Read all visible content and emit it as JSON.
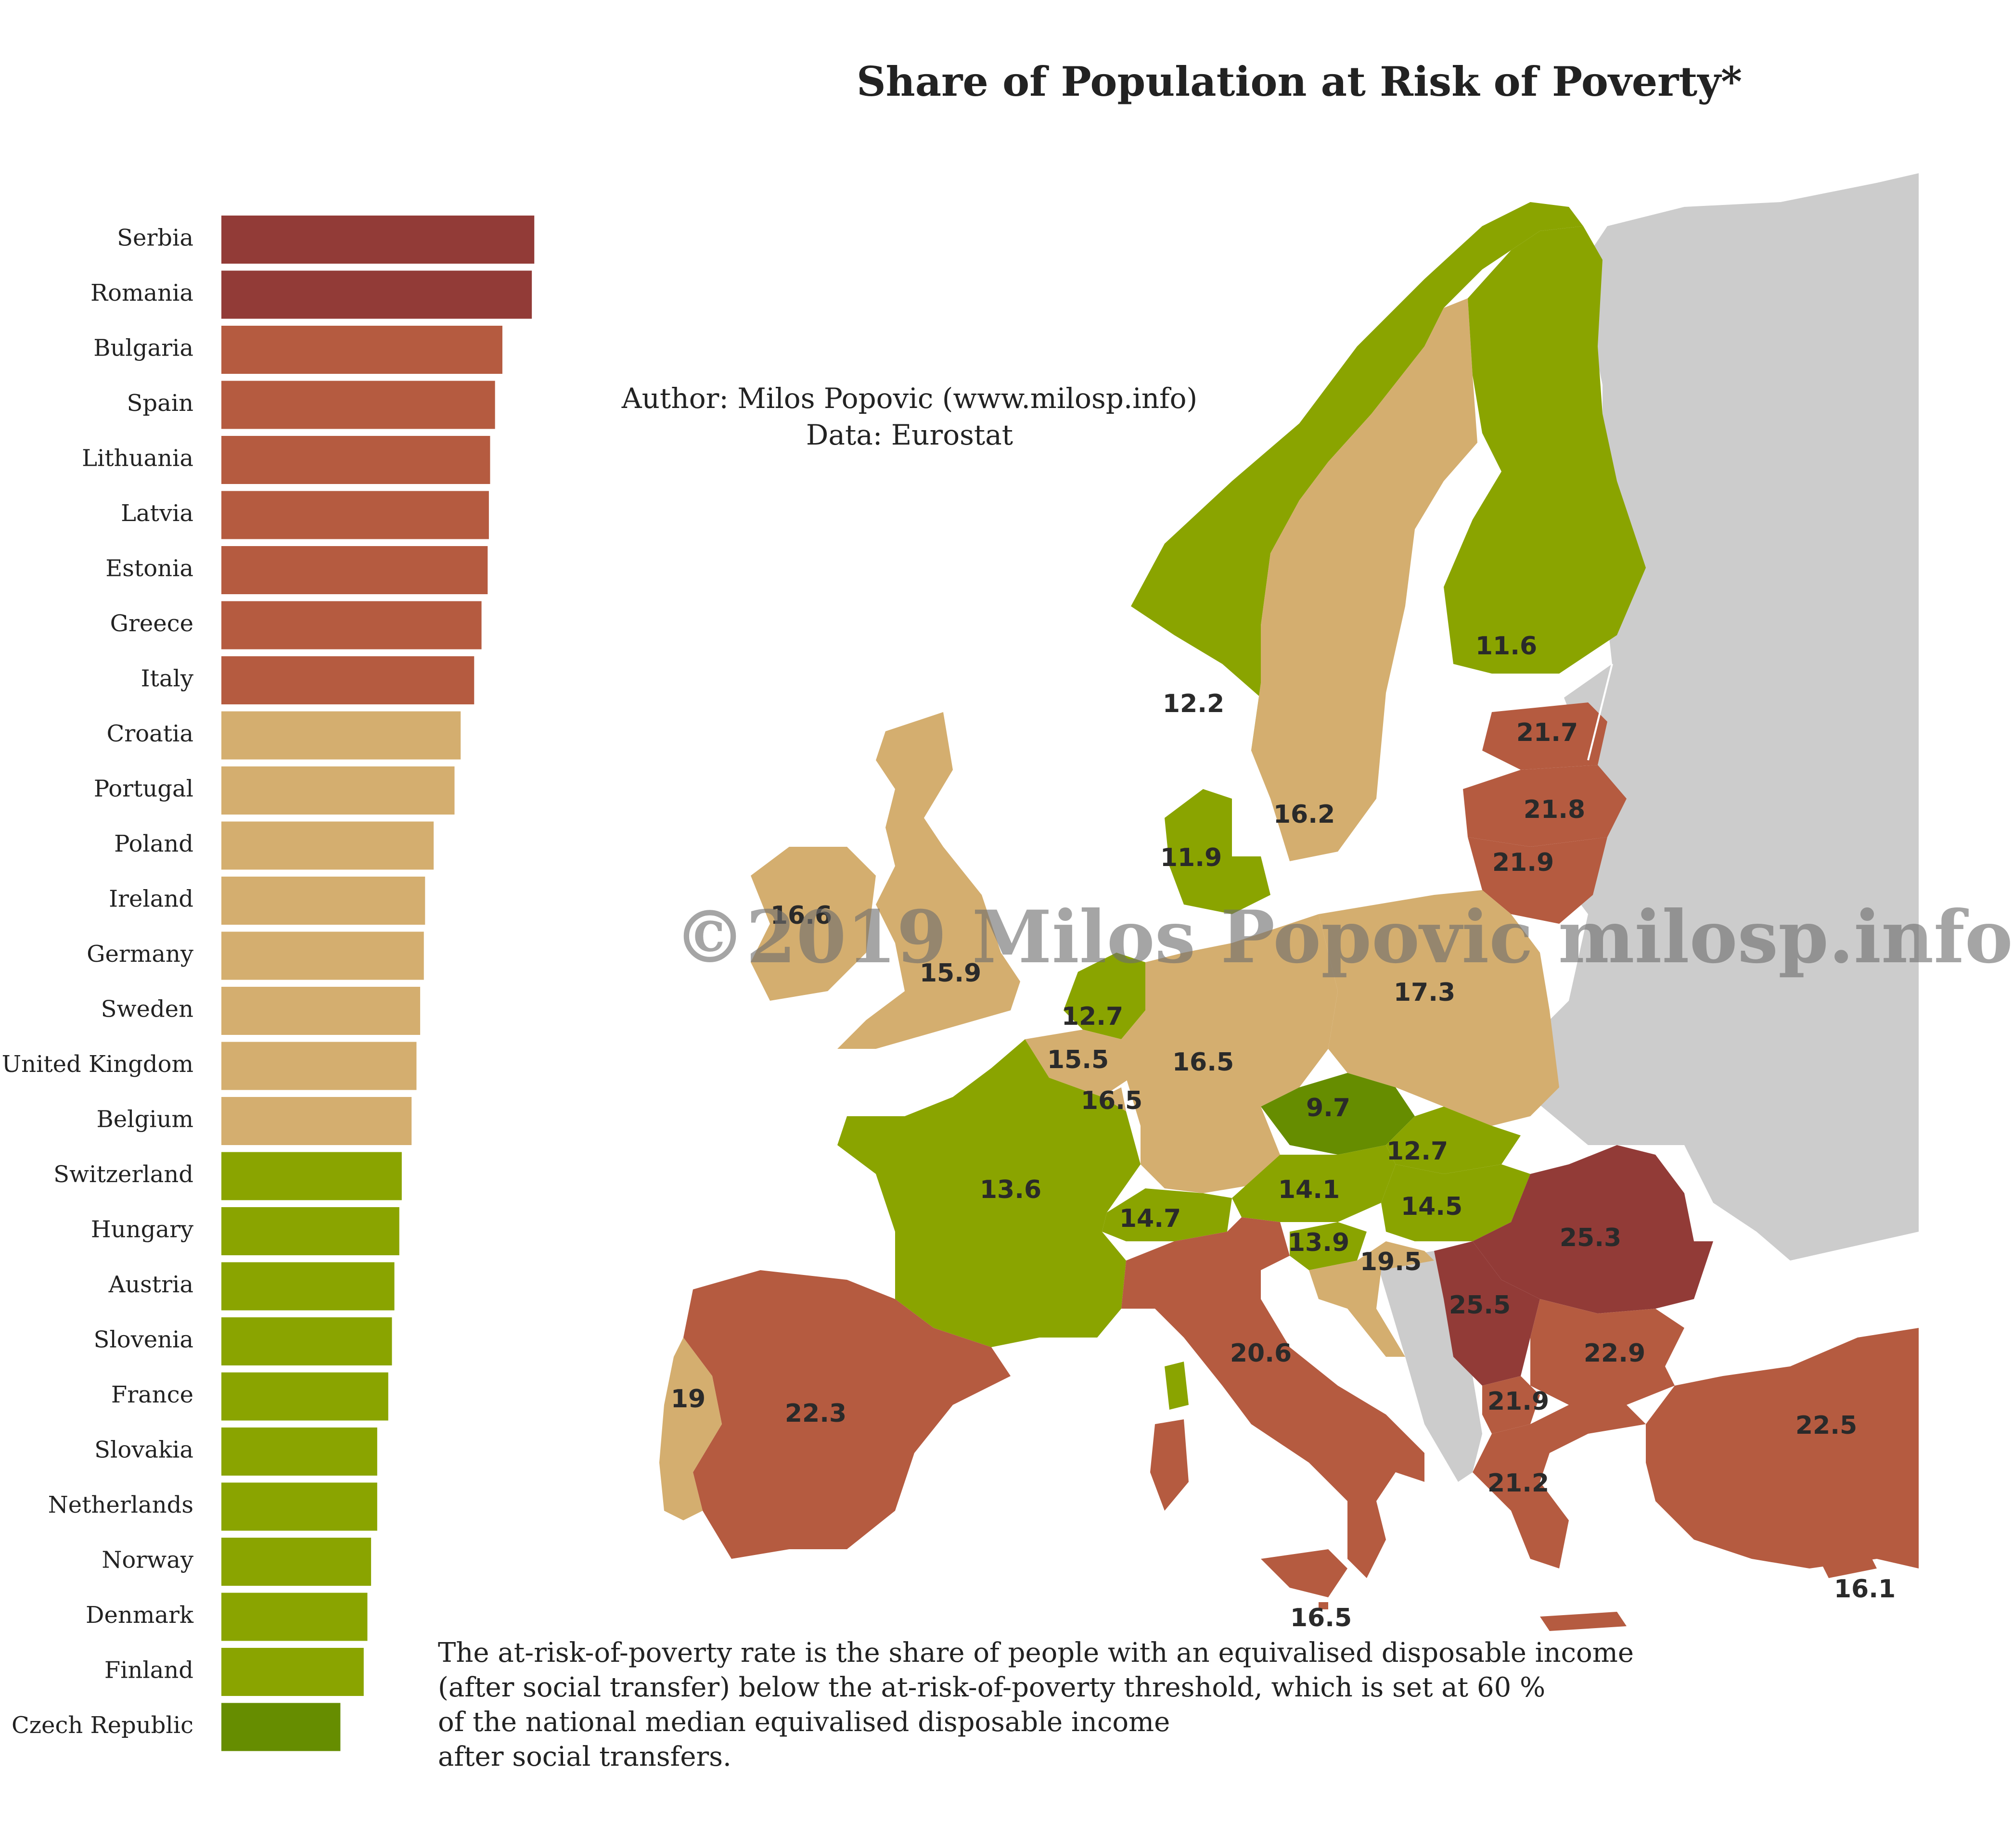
{
  "title": "Share of Population at Risk of Poverty*",
  "author": "Author: Milos Popovic (www.milosp.info)",
  "source": "Data: Eurostat",
  "watermark": "©2019 Milos Popovic milosp.info",
  "note_lines": [
    "The at-risk-of-poverty rate is the share of people with an equivalised disposable income",
    "(after social transfer) below the at-risk-of-poverty threshold, which is set at 60 %",
    "of the national median equivalised disposable income",
    "after social transfers."
  ],
  "colors": {
    "darkred": "#923b37",
    "red": "#b55b40",
    "tan": "#d4ae6f",
    "green": "#8aa400",
    "darkgreen": "#668d00",
    "nodata": "#cccccc",
    "background": "#ffffff"
  },
  "chart_data": {
    "type": "bar",
    "orientation": "horizontal",
    "title": "Share of Population at Risk of Poverty*",
    "xlabel": "",
    "ylabel": "",
    "xlim": [
      0,
      25.5
    ],
    "categories": [
      "Serbia",
      "Romania",
      "Bulgaria",
      "Spain",
      "Lithuania",
      "Latvia",
      "Estonia",
      "Greece",
      "Italy",
      "Croatia",
      "Portugal",
      "Poland",
      "Ireland",
      "Germany",
      "Sweden",
      "United Kingdom",
      "Belgium",
      "Switzerland",
      "Hungary",
      "Austria",
      "Slovenia",
      "France",
      "Slovakia",
      "Netherlands",
      "Norway",
      "Denmark",
      "Finland",
      "Czech Republic"
    ],
    "values": [
      25.5,
      25.3,
      22.9,
      22.3,
      21.9,
      21.8,
      21.7,
      21.2,
      20.6,
      19.5,
      19.0,
      17.3,
      16.6,
      16.5,
      16.2,
      15.9,
      15.5,
      14.7,
      14.5,
      14.1,
      13.9,
      13.6,
      12.7,
      12.7,
      12.2,
      11.9,
      11.6,
      9.7
    ],
    "color_classes": [
      "darkred",
      "darkred",
      "red",
      "red",
      "red",
      "red",
      "red",
      "red",
      "red",
      "tan",
      "tan",
      "tan",
      "tan",
      "tan",
      "tan",
      "tan",
      "tan",
      "green",
      "green",
      "green",
      "green",
      "green",
      "green",
      "green",
      "green",
      "green",
      "green",
      "darkgreen"
    ]
  },
  "map_labels": [
    {
      "country": "Norway",
      "value": "12.2"
    },
    {
      "country": "Sweden",
      "value": "16.2"
    },
    {
      "country": "Finland",
      "value": "11.6"
    },
    {
      "country": "Estonia",
      "value": "21.7"
    },
    {
      "country": "Latvia",
      "value": "21.8"
    },
    {
      "country": "Lithuania",
      "value": "21.9"
    },
    {
      "country": "Denmark",
      "value": "11.9"
    },
    {
      "country": "Ireland",
      "value": "16.6"
    },
    {
      "country": "United Kingdom",
      "value": "15.9"
    },
    {
      "country": "Netherlands",
      "value": "12.7"
    },
    {
      "country": "Belgium",
      "value": "15.5"
    },
    {
      "country": "Luxembourg",
      "value": "16.5"
    },
    {
      "country": "Germany",
      "value": "16.5"
    },
    {
      "country": "Poland",
      "value": "17.3"
    },
    {
      "country": "Czech Republic",
      "value": "9.7"
    },
    {
      "country": "Slovakia",
      "value": "12.7"
    },
    {
      "country": "Austria",
      "value": "14.1"
    },
    {
      "country": "Hungary",
      "value": "14.5"
    },
    {
      "country": "Switzerland",
      "value": "14.7"
    },
    {
      "country": "France",
      "value": "13.6"
    },
    {
      "country": "Slovenia",
      "value": "13.9"
    },
    {
      "country": "Croatia",
      "value": "19.5"
    },
    {
      "country": "Romania",
      "value": "25.3"
    },
    {
      "country": "Serbia",
      "value": "25.5"
    },
    {
      "country": "Bulgaria",
      "value": "22.9"
    },
    {
      "country": "North Macedonia",
      "value": "21.9"
    },
    {
      "country": "Greece",
      "value": "21.2"
    },
    {
      "country": "Turkey",
      "value": "22.5"
    },
    {
      "country": "Italy",
      "value": "20.6"
    },
    {
      "country": "Spain",
      "value": "22.3"
    },
    {
      "country": "Portugal",
      "value": "19"
    },
    {
      "country": "Malta",
      "value": "16.5"
    },
    {
      "country": "Cyprus",
      "value": "16.1"
    }
  ]
}
